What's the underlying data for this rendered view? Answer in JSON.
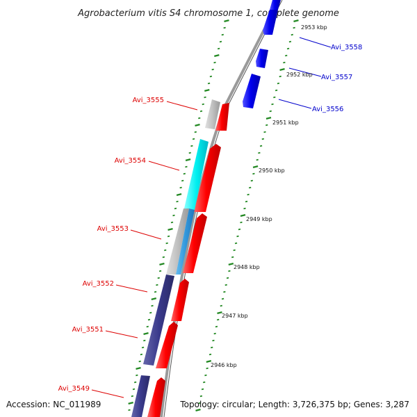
{
  "title": "Agrobacterium vitis S4 chromosome 1, complete genome",
  "accession": "Accession: NC_011989",
  "topology": "Topology: circular; Length: 3,726,375 bp; Genes: 3,287",
  "colors": {
    "forward": "#e00000",
    "reverse": "#0000dd",
    "cyan": "#00e8e8",
    "gray": "#b8b8b8",
    "steel": "#3399dd",
    "navy": "#3a3a8c",
    "tick": "#228822",
    "backbone": "#888888"
  },
  "scale_labels": [
    "2953 kbp",
    "2952 kbp",
    "2951 kbp",
    "2950 kbp",
    "2949 kbp",
    "2948 kbp",
    "2947 kbp",
    "2946 kbp"
  ],
  "forward_labels": [
    "Avi_3558",
    "Avi_3557",
    "Avi_3556"
  ],
  "reverse_labels": [
    "Avi_3555",
    "Avi_3554",
    "Avi_3553",
    "Avi_3552",
    "Avi_3551",
    "Avi_3549"
  ]
}
